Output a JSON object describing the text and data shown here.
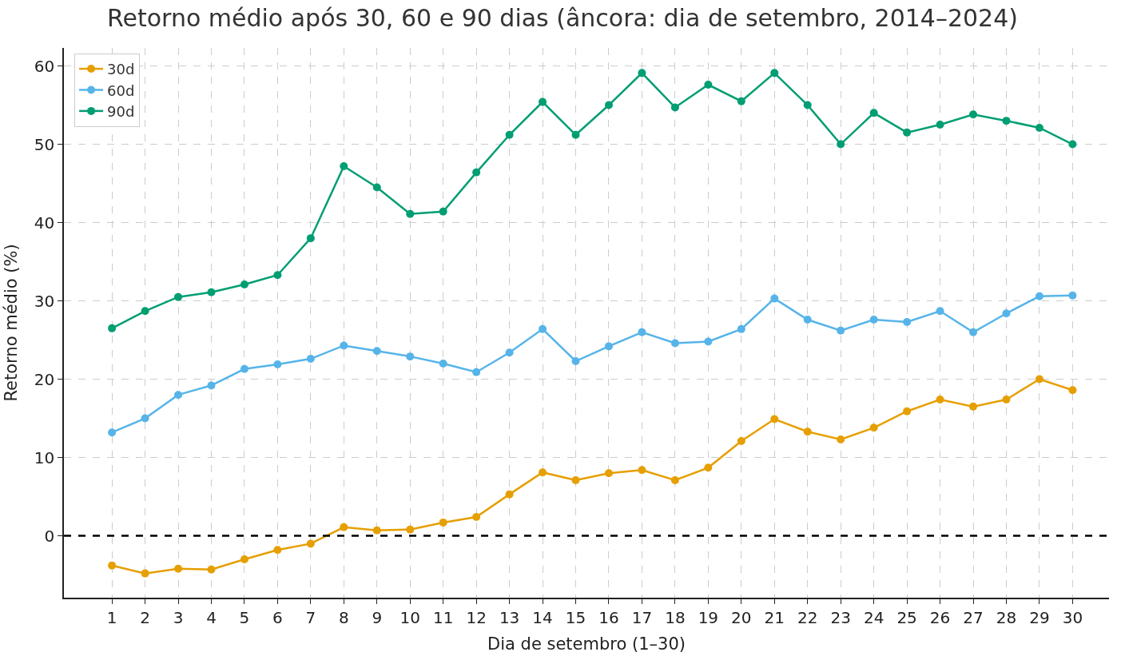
{
  "chart_data": {
    "type": "line",
    "title": "Retorno médio após 30, 60 e 90 dias (âncora: dia de setembro, 2014–2024)",
    "xlabel": "Dia de setembro (1–30)",
    "ylabel": "Retorno médio (%)",
    "x": [
      1,
      2,
      3,
      4,
      5,
      6,
      7,
      8,
      9,
      10,
      11,
      12,
      13,
      14,
      15,
      16,
      17,
      18,
      19,
      20,
      21,
      22,
      23,
      24,
      25,
      26,
      27,
      28,
      29,
      30
    ],
    "series": [
      {
        "name": "30d",
        "color": "#e69f00",
        "values": [
          -3.8,
          -4.8,
          -4.2,
          -4.3,
          -3.0,
          -1.8,
          -1.0,
          1.1,
          0.7,
          0.8,
          1.7,
          2.4,
          5.3,
          8.1,
          7.1,
          8.0,
          8.4,
          7.1,
          8.7,
          12.1,
          14.9,
          13.3,
          12.3,
          13.8,
          15.9,
          17.4,
          16.5,
          17.4,
          20.0,
          18.6
        ]
      },
      {
        "name": "60d",
        "color": "#56b4e9",
        "values": [
          13.2,
          15.0,
          18.0,
          19.2,
          21.3,
          21.9,
          22.6,
          24.3,
          23.6,
          22.9,
          22.0,
          20.9,
          23.4,
          26.4,
          22.3,
          24.2,
          26.0,
          24.6,
          24.8,
          26.4,
          30.3,
          27.6,
          26.2,
          27.6,
          27.3,
          28.7,
          26.0,
          28.4,
          30.6,
          30.7
        ]
      },
      {
        "name": "90d",
        "color": "#009e73",
        "values": [
          26.5,
          28.7,
          30.5,
          31.1,
          32.1,
          33.3,
          38.0,
          47.2,
          44.5,
          41.1,
          41.4,
          46.4,
          51.2,
          55.4,
          51.2,
          55.0,
          59.1,
          54.7,
          57.6,
          55.5,
          59.1,
          55.0,
          50.0,
          54.0,
          51.5,
          52.5,
          53.8,
          53.0,
          52.1,
          50.0
        ]
      }
    ],
    "xlim": [
      -0.45,
      31.1
    ],
    "xticks": [
      1,
      2,
      3,
      4,
      5,
      6,
      7,
      8,
      9,
      10,
      11,
      12,
      13,
      14,
      15,
      16,
      17,
      18,
      19,
      20,
      21,
      22,
      23,
      24,
      25,
      26,
      27,
      28,
      29,
      30
    ],
    "ylim": [
      -7.9,
      62.3
    ],
    "yticks": [
      0,
      10,
      20,
      30,
      40,
      50,
      60
    ],
    "ref_lines": [
      {
        "axis": "y",
        "value": 0,
        "color": "#000000",
        "line_style": "dashed"
      }
    ],
    "grid": true,
    "legend": "top left",
    "marker": "circle",
    "line_style": "solid"
  }
}
